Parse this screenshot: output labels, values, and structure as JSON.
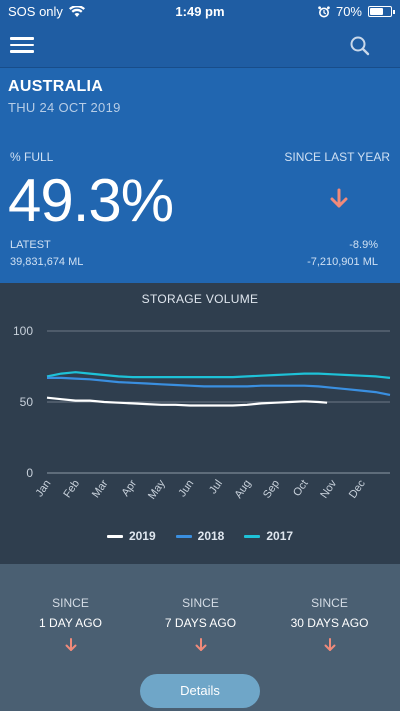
{
  "status_bar": {
    "carrier": "SOS only",
    "time": "1:49 pm",
    "battery": "70%",
    "battery_level": 0.7
  },
  "header": {
    "menu_icon": "hamburger-menu-icon",
    "search_icon": "search-icon"
  },
  "summary": {
    "country": "AUSTRALIA",
    "date": "THU 24 OCT 2019",
    "pct_label": "% FULL",
    "pct_value": "49.3%",
    "since_label": "SINCE LAST YEAR",
    "arrow_color": "#f08a7a",
    "latest_label": "LATEST",
    "latest_value": "39,831,674 ML",
    "change_pct": "-8.9%",
    "change_ml": "-7,210,901 ML"
  },
  "chart_data": {
    "type": "line",
    "title": "STORAGE VOLUME",
    "categories": [
      "Jan",
      "Feb",
      "Mar",
      "Apr",
      "May",
      "Jun",
      "Jul",
      "Aug",
      "Sep",
      "Oct",
      "Nov",
      "Dec"
    ],
    "ylim": [
      0,
      100
    ],
    "yticks": [
      0,
      50,
      100
    ],
    "grid": true,
    "legend": "bottom",
    "series": [
      {
        "name": "2019",
        "color": "#ffffff",
        "x": [
          0,
          0.5,
          1,
          1.5,
          2,
          2.5,
          3,
          3.5,
          4,
          4.5,
          5,
          5.5,
          6,
          6.5,
          7,
          7.5,
          8,
          8.5,
          9,
          9.5,
          9.8
        ],
        "values": [
          53,
          52,
          51,
          51,
          50,
          49.5,
          49,
          48.5,
          48,
          48,
          47.5,
          47.5,
          47.5,
          47.5,
          48,
          49,
          49.5,
          50,
          50.5,
          50,
          49.5
        ]
      },
      {
        "name": "2018",
        "color": "#3a8fe0",
        "x": [
          0,
          0.5,
          1,
          1.5,
          2,
          2.5,
          3,
          3.5,
          4,
          4.5,
          5,
          5.5,
          6,
          6.5,
          7,
          7.5,
          8,
          8.5,
          9,
          9.5,
          10,
          10.5,
          11,
          11.5,
          12
        ],
        "values": [
          67,
          67,
          66.5,
          66,
          65,
          64,
          63.5,
          63,
          62.5,
          62,
          61.5,
          61,
          61,
          61,
          61,
          61.5,
          61.5,
          61.5,
          61.5,
          61,
          60,
          59,
          58,
          57,
          55
        ]
      },
      {
        "name": "2017",
        "color": "#1ec2d8",
        "x": [
          0,
          0.5,
          1,
          1.5,
          2,
          2.5,
          3,
          3.5,
          4,
          4.5,
          5,
          5.5,
          6,
          6.5,
          7,
          7.5,
          8,
          8.5,
          9,
          9.5,
          10,
          10.5,
          11,
          11.5,
          12
        ],
        "values": [
          68,
          70,
          71,
          70,
          69,
          68,
          67.5,
          67.5,
          67.5,
          67.5,
          67.5,
          67.5,
          67.5,
          67.5,
          68,
          68.5,
          69,
          69.5,
          70,
          70,
          69.5,
          69,
          68.5,
          68,
          67
        ]
      }
    ]
  },
  "since_items": [
    {
      "label": "SINCE",
      "value": "1 DAY AGO"
    },
    {
      "label": "SINCE",
      "value": "7 DAYS AGO"
    },
    {
      "label": "SINCE",
      "value": "30 DAYS AGO"
    }
  ],
  "details_label": "Details"
}
